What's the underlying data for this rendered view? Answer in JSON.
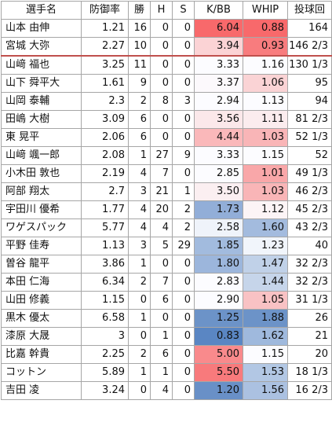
{
  "headers": [
    "選手名",
    "防御率",
    "勝",
    "H",
    "S",
    "K/BB",
    "WHIP",
    "投球回"
  ],
  "rows": [
    {
      "name": "山本 由伸",
      "era": "1.21",
      "w": "16",
      "h": "0",
      "s": "0",
      "kbb": "6.04",
      "kbb_color": "#f8696b",
      "whip": "0.88",
      "whip_color": "#f8696b",
      "ip": "164"
    },
    {
      "name": "宮城 大弥",
      "era": "2.27",
      "w": "10",
      "h": "0",
      "s": "0",
      "kbb": "3.94",
      "kbb_color": "#fbd3d5",
      "whip": "0.93",
      "whip_color": "#f87c7e",
      "ip": "146 2/3"
    },
    {
      "name": "山﨑 福也",
      "era": "3.25",
      "w": "11",
      "h": "0",
      "s": "0",
      "kbb": "3.33",
      "kbb_color": "#fcfcff",
      "whip": "1.16",
      "whip_color": "#fcfcff",
      "ip": "130 1/3"
    },
    {
      "name": "山下 舜平大",
      "era": "1.61",
      "w": "9",
      "h": "0",
      "s": "0",
      "kbb": "3.37",
      "kbb_color": "#fcf9fc",
      "whip": "1.06",
      "whip_color": "#fad3d5",
      "ip": "95"
    },
    {
      "name": "山岡 泰輔",
      "era": "2.3",
      "w": "2",
      "h": "8",
      "s": "3",
      "kbb": "2.94",
      "kbb_color": "#fcfcff",
      "whip": "1.13",
      "whip_color": "#fcfcff",
      "ip": "94"
    },
    {
      "name": "田嶋 大樹",
      "era": "3.09",
      "w": "6",
      "h": "0",
      "s": "0",
      "kbb": "3.56",
      "kbb_color": "#fbe8ea",
      "whip": "1.11",
      "whip_color": "#fbecee",
      "ip": "81 2/3"
    },
    {
      "name": "東 晃平",
      "era": "2.06",
      "w": "6",
      "h": "0",
      "s": "0",
      "kbb": "4.44",
      "kbb_color": "#fab8ba",
      "whip": "1.03",
      "whip_color": "#f9b5b7",
      "ip": "52 1/3"
    },
    {
      "name": "山﨑 颯一郎",
      "era": "2.08",
      "w": "1",
      "h": "27",
      "s": "9",
      "kbb": "3.33",
      "kbb_color": "#fcfcff",
      "whip": "1.15",
      "whip_color": "#fcfcff",
      "ip": "52"
    },
    {
      "name": "小木田 敦也",
      "era": "2.19",
      "w": "4",
      "h": "7",
      "s": "0",
      "kbb": "2.85",
      "kbb_color": "#fcfcff",
      "whip": "1.01",
      "whip_color": "#f9a7a9",
      "ip": "49 1/3"
    },
    {
      "name": "阿部 翔太",
      "era": "2.7",
      "w": "3",
      "h": "21",
      "s": "1",
      "kbb": "3.50",
      "kbb_color": "#fbeff1",
      "whip": "1.03",
      "whip_color": "#f9b5b7",
      "ip": "46 2/3"
    },
    {
      "name": "宇田川 優希",
      "era": "1.77",
      "w": "4",
      "h": "20",
      "s": "2",
      "kbb": "1.73",
      "kbb_color": "#92aed8",
      "whip": "1.12",
      "whip_color": "#fcf4f6",
      "ip": "45 2/3"
    },
    {
      "name": "ワゲスパック",
      "era": "5.77",
      "w": "4",
      "h": "4",
      "s": "2",
      "kbb": "2.58",
      "kbb_color": "#eff3fa",
      "whip": "1.60",
      "whip_color": "#a3bbde",
      "ip": "43 2/3"
    },
    {
      "name": "平野 佳寿",
      "era": "1.13",
      "w": "3",
      "h": "5",
      "s": "29",
      "kbb": "1.85",
      "kbb_color": "#a2bbde",
      "whip": "1.23",
      "whip_color": "#f1f5fb",
      "ip": "40"
    },
    {
      "name": "曽谷 龍平",
      "era": "3.86",
      "w": "1",
      "h": "0",
      "s": "0",
      "kbb": "1.80",
      "kbb_color": "#9cb6dc",
      "whip": "1.47",
      "whip_color": "#c0d1e8",
      "ip": "32 2/3"
    },
    {
      "name": "本田 仁海",
      "era": "6.34",
      "w": "2",
      "h": "7",
      "s": "0",
      "kbb": "2.83",
      "kbb_color": "#fcfcff",
      "whip": "1.44",
      "whip_color": "#c6d5ea",
      "ip": "32 2/3"
    },
    {
      "name": "山田 修義",
      "era": "1.15",
      "w": "0",
      "h": "6",
      "s": "0",
      "kbb": "2.90",
      "kbb_color": "#fcfcff",
      "whip": "1.05",
      "whip_color": "#f9c2c4",
      "ip": "31 1/3"
    },
    {
      "name": "黒木 優太",
      "era": "6.58",
      "w": "1",
      "h": "0",
      "s": "0",
      "kbb": "1.25",
      "kbb_color": "#6c93c8",
      "whip": "1.88",
      "whip_color": "#6c93c8",
      "ip": "26"
    },
    {
      "name": "漆原 大晟",
      "era": "3",
      "w": "0",
      "h": "1",
      "s": "0",
      "kbb": "0.83",
      "kbb_color": "#5a86c3",
      "whip": "1.62",
      "whip_color": "#9fb9dd",
      "ip": "21"
    },
    {
      "name": "比嘉 幹貴",
      "era": "2.25",
      "w": "2",
      "h": "6",
      "s": "0",
      "kbb": "5.00",
      "kbb_color": "#f98a8c",
      "whip": "1.15",
      "whip_color": "#fcfcff",
      "ip": "20"
    },
    {
      "name": "コットン",
      "era": "5.89",
      "w": "1",
      "h": "1",
      "s": "0",
      "kbb": "5.50",
      "kbb_color": "#f87a7c",
      "whip": "1.53",
      "whip_color": "#b2c7e4",
      "ip": "18 1/3"
    },
    {
      "name": "吉田 凌",
      "era": "3.24",
      "w": "0",
      "h": "4",
      "s": "0",
      "kbb": "1.20",
      "kbb_color": "#6990c7",
      "whip": "1.56",
      "whip_color": "#abc1e1",
      "ip": "16 2/3"
    }
  ]
}
